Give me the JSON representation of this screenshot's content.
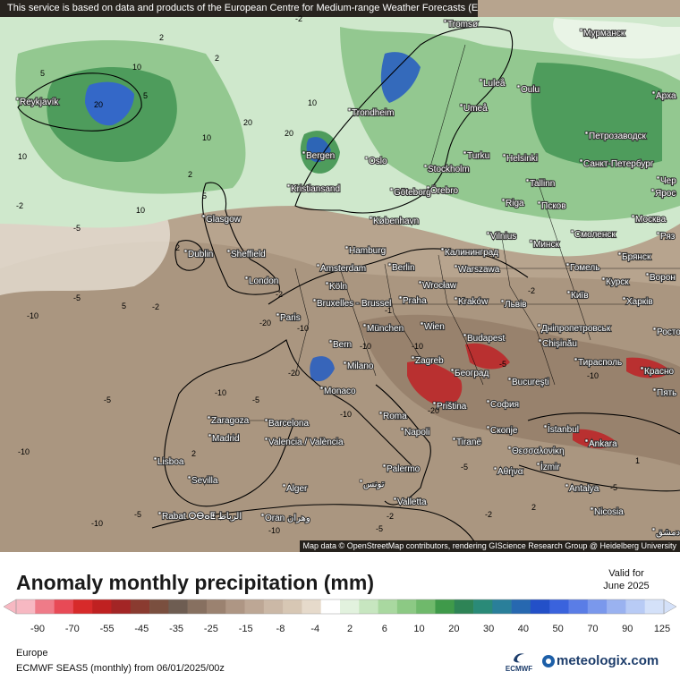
{
  "banner": "This service is based on data and products of the European Centre for Medium-range Weather Forecasts (ECMWF)",
  "attribution": "Map data © OpenStreetMap contributors, rendering GIScience Research Group @ Heidelberg University",
  "title": "Anomaly monthly precipitation (mm)",
  "valid_label": "Valid for",
  "valid_date": "June 2025",
  "region": "Europe",
  "model_line": "ECMWF SEAS5 (monthly) from 06/01/2025/00z",
  "ecmwf_logo_text": "ECMWF",
  "brand": "meteologix.com",
  "legend": {
    "ticks": [
      "-90",
      "-70",
      "-55",
      "-45",
      "-35",
      "-25",
      "-15",
      "-8",
      "-4",
      "2",
      "6",
      "10",
      "20",
      "30",
      "40",
      "50",
      "70",
      "90",
      "125"
    ],
    "colors": [
      "#f7b8c2",
      "#ef7b88",
      "#e84a56",
      "#d72a2a",
      "#bf2121",
      "#a32525",
      "#8a3b30",
      "#7a4f3f",
      "#6e5d52",
      "#877060",
      "#9b8270",
      "#ae9684",
      "#bda795",
      "#cbb8a6",
      "#d7c7b4",
      "#e6dacb",
      "#ffffff",
      "#e2f2de",
      "#c7e6c0",
      "#a9d8a0",
      "#8cc984",
      "#6fb96b",
      "#3f9a4a",
      "#2e8456",
      "#2a8a78",
      "#2a7f9a",
      "#2768b0",
      "#2350c8",
      "#3a63dd",
      "#5a7de6",
      "#7a98ec",
      "#9ab2f0",
      "#b8cbf5",
      "#d4e1f9"
    ]
  },
  "colors": {
    "land_dry": "#b7a48e",
    "land_dry_mid": "#a18b74",
    "land_dry_strong": "#8c7460",
    "neutral": "#e9e3d8",
    "wet_light": "#cfe8cc",
    "wet_mid": "#93c890",
    "wet_strong": "#4e9c5c",
    "wet_max": "#3468c8",
    "very_dry": "#b93030"
  },
  "cities": [
    {
      "name": "Reykjavík"
    },
    {
      "name": "Tromsø"
    },
    {
      "name": "Мурманск"
    },
    {
      "name": "Luleå"
    },
    {
      "name": "Oulu"
    },
    {
      "name": "Арха"
    },
    {
      "name": "Umeå"
    },
    {
      "name": "Trondheim"
    },
    {
      "name": "Петрозаводск"
    },
    {
      "name": "Turku"
    },
    {
      "name": "Helsinki"
    },
    {
      "name": "Bergen"
    },
    {
      "name": "Oslo"
    },
    {
      "name": "Stockholm"
    },
    {
      "name": "Санкт-Петербург"
    },
    {
      "name": "Kristiansand"
    },
    {
      "name": "Göteborg"
    },
    {
      "name": "Örebro"
    },
    {
      "name": "Tallinn"
    },
    {
      "name": "Чер"
    },
    {
      "name": "Ярос"
    },
    {
      "name": "Псков"
    },
    {
      "name": "Glasgow"
    },
    {
      "name": "København"
    },
    {
      "name": "Riga"
    },
    {
      "name": "Москва"
    },
    {
      "name": "Vilnius"
    },
    {
      "name": "Минск"
    },
    {
      "name": "Смоленск"
    },
    {
      "name": "Ряз"
    },
    {
      "name": "Dublin"
    },
    {
      "name": "Sheffield"
    },
    {
      "name": "Hamburg"
    },
    {
      "name": "Калининград"
    },
    {
      "name": "Брянск"
    },
    {
      "name": "Berlin"
    },
    {
      "name": "Гомель"
    },
    {
      "name": "Amsterdam"
    },
    {
      "name": "Warszawa"
    },
    {
      "name": "London"
    },
    {
      "name": "Köln"
    },
    {
      "name": "Wrocław"
    },
    {
      "name": "Курск"
    },
    {
      "name": "Ворон"
    },
    {
      "name": "Київ"
    },
    {
      "name": "Bruxelles - Brussel"
    },
    {
      "name": "Praha"
    },
    {
      "name": "Kraków"
    },
    {
      "name": "Львів"
    },
    {
      "name": "Харків"
    },
    {
      "name": "Paris"
    },
    {
      "name": "München"
    },
    {
      "name": "Wien"
    },
    {
      "name": "Дніпропетровськ"
    },
    {
      "name": "Budapest"
    },
    {
      "name": "Chișinău"
    },
    {
      "name": "Росто"
    },
    {
      "name": "Bern"
    },
    {
      "name": "Тирасполь"
    },
    {
      "name": "Milano"
    },
    {
      "name": "Zagreb"
    },
    {
      "name": "Београд"
    },
    {
      "name": "Красно"
    },
    {
      "name": "Monaco"
    },
    {
      "name": "Bucureşti"
    },
    {
      "name": "Пять"
    },
    {
      "name": "Priština"
    },
    {
      "name": "София"
    },
    {
      "name": "Roma"
    },
    {
      "name": "Zaragoza"
    },
    {
      "name": "Barcelona"
    },
    {
      "name": "Madrid"
    },
    {
      "name": "Napoli"
    },
    {
      "name": "Скопје"
    },
    {
      "name": "İstanbul"
    },
    {
      "name": "Tiranë"
    },
    {
      "name": "Θεσσαλονίκη"
    },
    {
      "name": "Ankara"
    },
    {
      "name": "Valencia / València"
    },
    {
      "name": "İzmir"
    },
    {
      "name": "Lisboa"
    },
    {
      "name": "Αθήνα"
    },
    {
      "name": "Palermo"
    },
    {
      "name": "Sevilla"
    },
    {
      "name": "تونس"
    },
    {
      "name": "Antalya"
    },
    {
      "name": "Alger"
    },
    {
      "name": "Valletta"
    },
    {
      "name": "Rabat ⵔⴱⴰⵟ الرباط"
    },
    {
      "name": "Oran وهران"
    },
    {
      "name": "Nicosia"
    },
    {
      "name": "دمشق"
    }
  ],
  "contour_values": [
    "5",
    "2",
    "10",
    "20",
    "5",
    "2",
    "-2",
    "10",
    "20",
    "5",
    "2",
    "10",
    "20",
    "10",
    "-2",
    "-5",
    "10",
    "2",
    "-10",
    "-5",
    "-2",
    "-5",
    "-10",
    "-10",
    "-10",
    "-20",
    "-10",
    "-5",
    "-20",
    "-10",
    "-5",
    "-2",
    "-10",
    "-5",
    "-10",
    "-5",
    "-2",
    "-10",
    "-20",
    "-10",
    "-5",
    "-2",
    "-5",
    "2",
    "5",
    "-2",
    "-1",
    "2",
    "1"
  ]
}
